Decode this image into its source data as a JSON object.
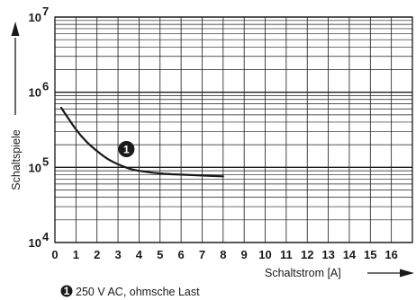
{
  "chart_data": {
    "type": "line",
    "title": "",
    "xlabel": "Schaltstrom [A]",
    "ylabel": "Schaltspiele",
    "x_scale": "linear",
    "y_scale": "log",
    "xlim": [
      0,
      17
    ],
    "ylim": [
      10000,
      10000000
    ],
    "x_ticks": [
      "0",
      "1",
      "2",
      "3",
      "4",
      "5",
      "6",
      "7",
      "8",
      "9",
      "10",
      "11",
      "12",
      "13",
      "14",
      "15",
      "16"
    ],
    "y_ticks": [
      {
        "base": "10",
        "exp": "4",
        "value": 10000
      },
      {
        "base": "10",
        "exp": "5",
        "value": 100000
      },
      {
        "base": "10",
        "exp": "6",
        "value": 1000000
      },
      {
        "base": "10",
        "exp": "7",
        "value": 10000000
      }
    ],
    "grid": true,
    "series": [
      {
        "marker_label": "1",
        "color": "#1a1a1a",
        "x": [
          0.3,
          1,
          1.5,
          2,
          2.5,
          3,
          3.5,
          4,
          5,
          6,
          7,
          8
        ],
        "y": [
          620000,
          320000,
          220000,
          165000,
          130000,
          110000,
          97000,
          90000,
          83000,
          80000,
          78000,
          76000
        ]
      }
    ],
    "marker": {
      "label": "1",
      "x": 3.4,
      "y": 175000
    },
    "legend": [
      {
        "marker_label": "1",
        "text": "250 V AC, ohmsche Last"
      }
    ]
  }
}
